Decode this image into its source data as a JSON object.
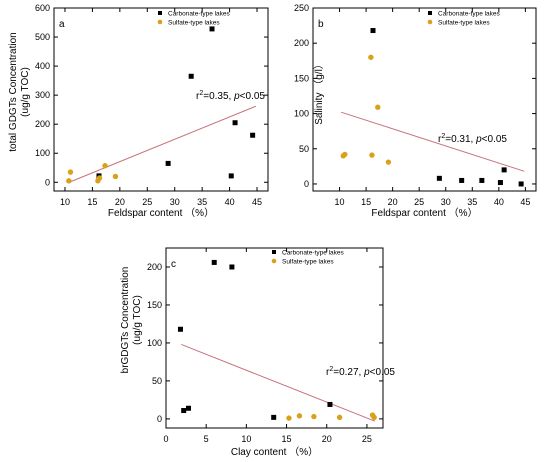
{
  "colors": {
    "carbonate": "#000000",
    "sulfate": "#d9a11a",
    "trend": "#c9707a"
  },
  "chart_data": [
    {
      "type": "scatter",
      "panel_label": "a",
      "xlabel": "Feldspar content （%）",
      "ylabel_line1": "total GDGTs Concentration",
      "ylabel_line2": "(ug/g TOC)",
      "xlim": [
        8,
        47
      ],
      "ylim": [
        -30,
        600
      ],
      "xticks": [
        10,
        15,
        20,
        25,
        30,
        35,
        40,
        45
      ],
      "yticks": [
        0,
        100,
        200,
        300,
        400,
        500,
        600
      ],
      "legend_position": "top-right",
      "series": [
        {
          "name": "Carbonate-type lakes",
          "marker": "square",
          "points": [
            [
              16.2,
              22
            ],
            [
              28.8,
              65
            ],
            [
              33.0,
              365
            ],
            [
              36.8,
              528
            ],
            [
              40.3,
              22
            ],
            [
              41.0,
              205
            ],
            [
              44.2,
              162
            ]
          ]
        },
        {
          "name": "Sulfate-type lakes",
          "marker": "circle",
          "points": [
            [
              10.7,
              5
            ],
            [
              11.0,
              35
            ],
            [
              16.0,
              5
            ],
            [
              16.3,
              15
            ],
            [
              17.3,
              57
            ],
            [
              19.2,
              20
            ]
          ]
        }
      ],
      "trendline": {
        "x": [
          10.5,
          44.8
        ],
        "y": [
          -2,
          262
        ]
      },
      "annotation": {
        "r2": "0.35",
        "p": "0.05"
      }
    },
    {
      "type": "scatter",
      "panel_label": "b",
      "xlabel": "Feldspar content （%）",
      "ylabel_line1": "Salinity （g/l）",
      "xlim": [
        5,
        47
      ],
      "ylim": [
        -10,
        250
      ],
      "xticks": [
        10,
        15,
        20,
        25,
        30,
        35,
        40,
        45
      ],
      "yticks": [
        0,
        50,
        100,
        150,
        200,
        250
      ],
      "legend_position": "top-right",
      "series": [
        {
          "name": "Carbonate-type lakes",
          "marker": "square",
          "points": [
            [
              16.3,
              218
            ],
            [
              28.8,
              8
            ],
            [
              33.0,
              5
            ],
            [
              36.8,
              5
            ],
            [
              40.3,
              2
            ],
            [
              41.0,
              20
            ],
            [
              44.2,
              0
            ]
          ]
        },
        {
          "name": "Sulfate-type lakes",
          "marker": "circle",
          "points": [
            [
              10.7,
              40
            ],
            [
              11.0,
              42
            ],
            [
              15.9,
              180
            ],
            [
              16.1,
              41
            ],
            [
              17.2,
              109
            ],
            [
              19.2,
              31
            ]
          ]
        }
      ],
      "trendline": {
        "x": [
          10.3,
          44.8
        ],
        "y": [
          102,
          18
        ]
      },
      "annotation": {
        "r2": "0.31",
        "p": "0.05"
      }
    },
    {
      "type": "scatter",
      "panel_label": "c",
      "xlabel": "Clay content （%）",
      "ylabel_line1": "brGDGTs Concentration",
      "ylabel_line2": "(ug/g TOC)",
      "xlim": [
        0,
        27
      ],
      "ylim": [
        -12,
        225
      ],
      "xticks": [
        0,
        5,
        10,
        15,
        20,
        25
      ],
      "yticks": [
        0,
        50,
        100,
        150,
        200
      ],
      "legend_position": "top-right",
      "series": [
        {
          "name": "Carbonate-type lakes",
          "marker": "square",
          "points": [
            [
              1.8,
              118
            ],
            [
              2.2,
              11
            ],
            [
              2.8,
              14
            ],
            [
              6.0,
              206
            ],
            [
              8.2,
              200
            ],
            [
              13.4,
              2
            ],
            [
              20.4,
              19
            ]
          ]
        },
        {
          "name": "Sulfate-type lakes",
          "marker": "circle",
          "points": [
            [
              15.3,
              1
            ],
            [
              16.6,
              4
            ],
            [
              18.4,
              3
            ],
            [
              21.6,
              2
            ],
            [
              25.7,
              5
            ],
            [
              25.9,
              2
            ]
          ]
        }
      ],
      "trendline": {
        "x": [
          1.9,
          26.0
        ],
        "y": [
          98,
          -3
        ]
      },
      "annotation": {
        "r2": "0.27",
        "p": "0.05"
      }
    }
  ]
}
